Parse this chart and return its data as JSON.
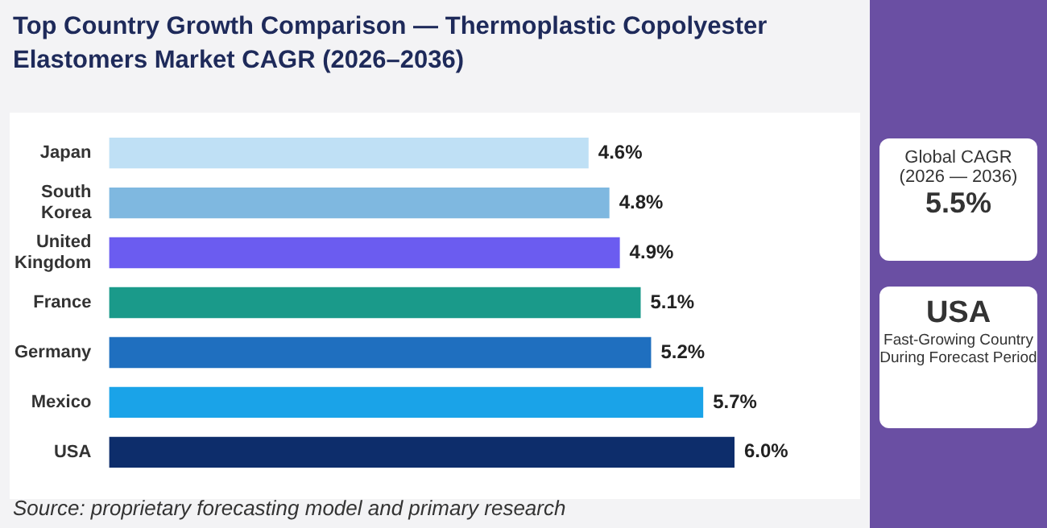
{
  "chart_data": {
    "type": "bar",
    "orientation": "horizontal",
    "title": "Top Country Growth Comparison — Thermoplastic Copolyester Elastomers Market CAGR (2026–2036)",
    "categories": [
      "Japan",
      "South Korea",
      "United Kingdom",
      "France",
      "Germany",
      "Mexico",
      "USA"
    ],
    "values": [
      4.6,
      4.8,
      4.9,
      5.1,
      5.2,
      5.7,
      6.0
    ],
    "colors": [
      "#bfe0f5",
      "#7fb8e0",
      "#6b5cf0",
      "#1a9a8a",
      "#1f6fbf",
      "#1aa3e8",
      "#0d2d6b"
    ],
    "value_labels": [
      "4.6%",
      "4.8%",
      "4.9%",
      "5.1%",
      "5.2%",
      "5.7%",
      "6.0%"
    ],
    "annotations": [
      "Source: proprietary forecasting model and primary research",
      "Global CAGR",
      "(2026 — 2036)",
      "5.5%",
      "USA",
      "Fast-Growing Country",
      "During Forecast Period"
    ]
  }
}
